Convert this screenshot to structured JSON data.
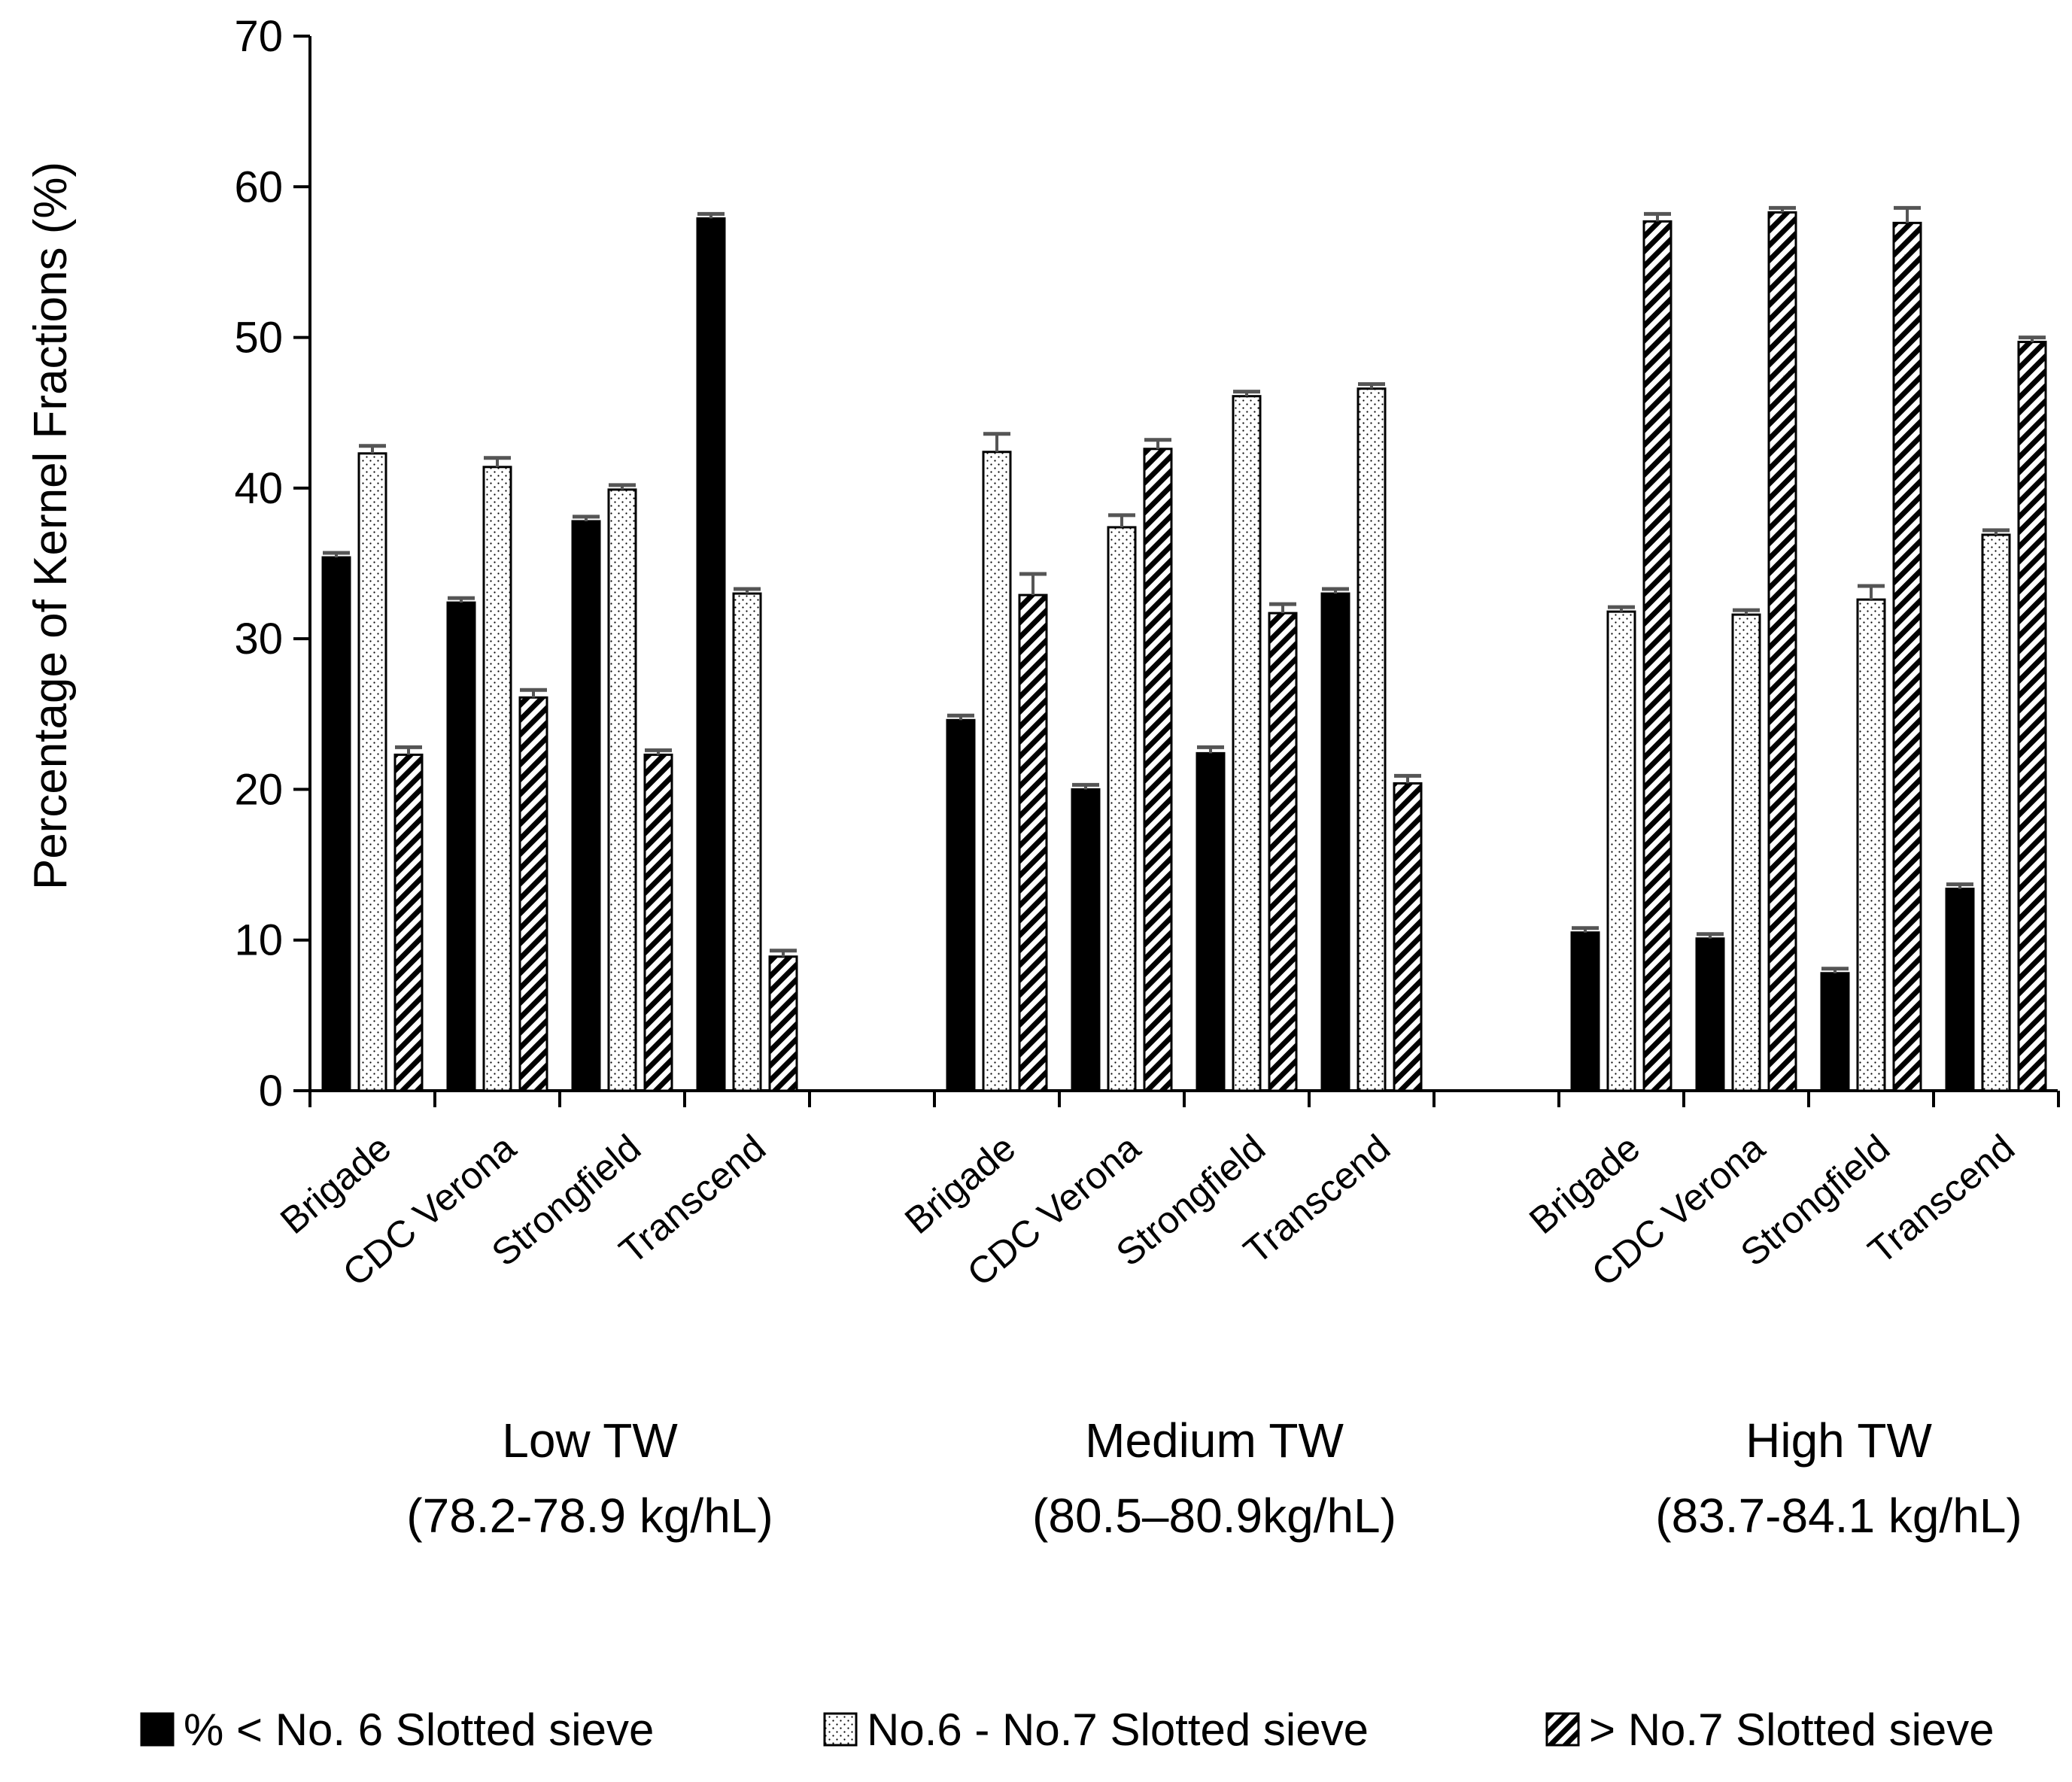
{
  "chart_data": {
    "type": "bar",
    "ylabel": "Percentage of Kernel Fractions (%)",
    "ylim": [
      0,
      70
    ],
    "yticks": [
      0,
      10,
      20,
      30,
      40,
      50,
      60,
      70
    ],
    "groups": [
      {
        "name": "Low TW",
        "range": "(78.2-78.9 kg/hL)",
        "categories": [
          "Brigade",
          "CDC Verona",
          "Strongfield",
          "Transcend"
        ],
        "series": [
          {
            "name": "% < No. 6 Slotted sieve",
            "values": [
              35.4,
              32.4,
              37.8,
              57.9
            ],
            "errors": [
              0.3,
              0.3,
              0.3,
              0.3
            ]
          },
          {
            "name": "No.6 - No.7 Slotted sieve",
            "values": [
              42.3,
              41.4,
              39.9,
              33.0
            ],
            "errors": [
              0.5,
              0.6,
              0.3,
              0.3
            ]
          },
          {
            "name": "> No.7 Slotted sieve",
            "values": [
              22.3,
              26.1,
              22.3,
              8.9
            ],
            "errors": [
              0.5,
              0.5,
              0.3,
              0.4
            ]
          }
        ]
      },
      {
        "name": "Medium TW",
        "range": "(80.5–80.9kg/hL)",
        "categories": [
          "Brigade",
          "CDC Verona",
          "Strongfield",
          "Transcend"
        ],
        "series": [
          {
            "name": "% < No. 6 Slotted sieve",
            "values": [
              24.6,
              20.0,
              22.4,
              33.0
            ],
            "errors": [
              0.3,
              0.3,
              0.4,
              0.3
            ]
          },
          {
            "name": "No.6 - No.7 Slotted sieve",
            "values": [
              42.4,
              37.4,
              46.1,
              46.6
            ],
            "errors": [
              1.2,
              0.8,
              0.3,
              0.3
            ]
          },
          {
            "name": "> No.7 Slotted sieve",
            "values": [
              32.9,
              42.6,
              31.7,
              20.4
            ],
            "errors": [
              1.4,
              0.6,
              0.6,
              0.5
            ]
          }
        ]
      },
      {
        "name": "High TW",
        "range": "(83.7-84.1 kg/hL)",
        "categories": [
          "Brigade",
          "CDC Verona",
          "Strongfield",
          "Transcend"
        ],
        "series": [
          {
            "name": "% < No. 6 Slotted sieve",
            "values": [
              10.5,
              10.1,
              7.8,
              13.4
            ],
            "errors": [
              0.3,
              0.3,
              0.3,
              0.3
            ]
          },
          {
            "name": "No.6 - No.7 Slotted sieve",
            "values": [
              31.8,
              31.6,
              32.6,
              36.9
            ],
            "errors": [
              0.3,
              0.3,
              0.9,
              0.3
            ]
          },
          {
            "name": "> No.7 Slotted sieve",
            "values": [
              57.7,
              58.3,
              57.6,
              49.7
            ],
            "errors": [
              0.5,
              0.3,
              1.0,
              0.3
            ]
          }
        ]
      }
    ],
    "legend": {
      "position": "bottom",
      "entries": [
        "% < No. 6 Slotted sieve",
        "No.6 - No.7 Slotted sieve",
        "> No.7 Slotted sieve"
      ]
    },
    "grid": false
  }
}
